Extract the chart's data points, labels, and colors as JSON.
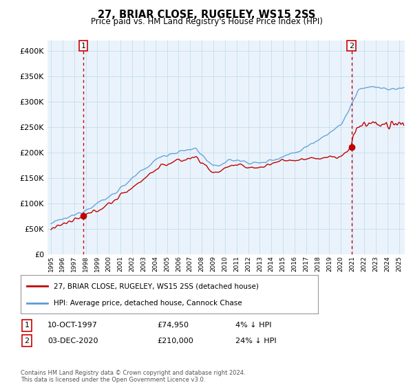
{
  "title": "27, BRIAR CLOSE, RUGELEY, WS15 2SS",
  "subtitle": "Price paid vs. HM Land Registry's House Price Index (HPI)",
  "legend_line1": "27, BRIAR CLOSE, RUGELEY, WS15 2SS (detached house)",
  "legend_line2": "HPI: Average price, detached house, Cannock Chase",
  "annotation1_label": "1",
  "annotation1_date": "10-OCT-1997",
  "annotation1_price": "£74,950",
  "annotation1_hpi": "4% ↓ HPI",
  "annotation1_year": 1997.78,
  "annotation1_value": 74950,
  "annotation2_label": "2",
  "annotation2_date": "03-DEC-2020",
  "annotation2_price": "£210,000",
  "annotation2_hpi": "24% ↓ HPI",
  "annotation2_year": 2020.92,
  "annotation2_value": 210000,
  "footer": "Contains HM Land Registry data © Crown copyright and database right 2024.\nThis data is licensed under the Open Government Licence v3.0.",
  "hpi_color": "#5b9bd5",
  "hpi_fill_color": "#d6e8f7",
  "price_color": "#c00000",
  "dot_color": "#c00000",
  "background_color": "#ffffff",
  "chart_bg_color": "#eaf3fb",
  "grid_color": "#c8dff0",
  "ylim": [
    0,
    420000
  ],
  "yticks": [
    0,
    50000,
    100000,
    150000,
    200000,
    250000,
    300000,
    350000,
    400000
  ],
  "xmin": 1994.7,
  "xmax": 2025.5
}
